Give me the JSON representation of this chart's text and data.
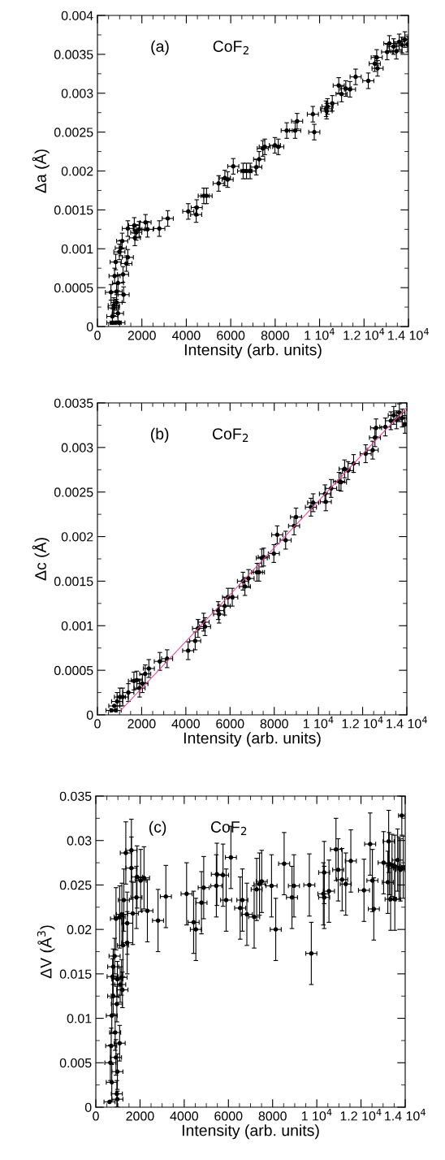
{
  "chart_data": [
    {
      "type": "scatter",
      "xlabel": "Intensity (arb. units)",
      "ylabel": "Δa (Å)",
      "annotations": [
        "(a)",
        "CoF$_{2}$"
      ],
      "marker": "circle",
      "grid": false,
      "xlim": [
        0,
        14000
      ],
      "xticks": [
        0,
        2000,
        4000,
        6000,
        8000,
        {
          "value": 10000,
          "label": "1 10$^{4}$"
        },
        {
          "value": 12000,
          "label": "1.2 10$^{4}$"
        },
        {
          "value": 14000,
          "label": "1.4 10$^{4}$"
        }
      ],
      "ylim": [
        0,
        0.004
      ],
      "yticks": [
        0,
        0.0005,
        0.001,
        0.0015,
        0.002,
        0.0025,
        0.003,
        0.0035,
        0.004
      ],
      "series": [
        {
          "color": "#000000",
          "x": [
            671,
            734,
            608,
            772,
            861,
            924,
            823,
            987,
            1051,
            1114,
            1177,
            1152,
            1367,
            1304,
            1367,
            1658,
            1747,
            1684,
            1874,
            2165,
            2253,
            2785,
            3165,
            4089,
            4469,
            4444,
            4786,
            4912,
            5456,
            5735,
            5861,
            6114,
            6558,
            6709,
            6874,
            7152,
            7279,
            7443,
            7532,
            7988,
            8140,
            8520,
            8900,
            8988,
            9697,
            9761,
            10292,
            10318,
            10356,
            10571,
            10862,
            10989,
            11179,
            11368,
            11622,
            12192,
            12483,
            12571,
            12609,
            13040,
            13141,
            13331,
            13457,
            13584,
            13711,
            13837,
            13964,
            671,
            823,
            924,
            734,
            987,
            861
          ],
          "values": [
            0.00013,
            0.00027,
            0.00044,
            0.00065,
            0.00045,
            0.00056,
            0.00083,
            0.00096,
            0.00101,
            0.0011,
            0.00041,
            0.00067,
            0.00089,
            0.00081,
            0.00126,
            0.0013,
            0.00121,
            0.00114,
            0.00125,
            0.00134,
            0.00125,
            0.00126,
            0.00139,
            0.00148,
            0.00153,
            0.00144,
            0.00168,
            0.00168,
            0.00184,
            0.00191,
            0.00189,
            0.00206,
            0.002,
            0.002,
            0.002,
            0.00205,
            0.00215,
            0.00229,
            0.00231,
            0.00233,
            0.00231,
            0.00252,
            0.00252,
            0.00264,
            0.00273,
            0.0025,
            0.0028,
            0.00277,
            0.00283,
            0.00287,
            0.0031,
            0.00299,
            0.00306,
            0.00305,
            0.00321,
            0.00316,
            0.00338,
            0.00346,
            0.00332,
            0.00353,
            0.00364,
            0.0036,
            0.00354,
            0.00366,
            0.00362,
            0.00369,
            0.00363,
            5e-05,
            5e-05,
            0.00017,
            0.00024,
            5e-05,
            0.00031
          ],
          "errors": [
            0.0001,
            0.0001,
            0.0001,
            0.0001,
            0.0001,
            0.0001,
            0.0001,
            0.0001,
            0.0001,
            0.0001,
            0.0001,
            0.0001,
            0.0001,
            0.0001,
            0.0001,
            0.0001,
            0.0001,
            0.0001,
            0.0001,
            0.0001,
            0.0001,
            0.0001,
            0.0001,
            0.0001,
            0.0001,
            0.0001,
            0.0001,
            0.0001,
            0.0001,
            0.0001,
            0.0001,
            0.0001,
            0.0001,
            0.0001,
            0.0001,
            0.0001,
            0.0001,
            0.0001,
            0.0001,
            0.0001,
            0.0001,
            0.0001,
            0.0001,
            0.0001,
            0.0001,
            0.0001,
            0.0001,
            0.0001,
            0.0001,
            0.0001,
            0.0001,
            0.0001,
            0.0001,
            0.0001,
            0.0001,
            0.0001,
            0.0001,
            0.0001,
            0.0001,
            0.0001,
            0.0001,
            0.0001,
            0.0001,
            0.0001,
            0.0001,
            0.0001,
            0.0001,
            null,
            null,
            0.0001,
            0.0001,
            null,
            0.0001
          ],
          "xerrors": [
            250,
            250,
            250,
            250,
            250,
            250,
            250,
            250,
            250,
            250,
            250,
            250,
            250,
            250,
            250,
            250,
            250,
            250,
            250,
            250,
            250,
            250,
            250,
            250,
            250,
            250,
            250,
            250,
            250,
            250,
            250,
            250,
            250,
            250,
            250,
            250,
            250,
            250,
            250,
            250,
            250,
            250,
            250,
            250,
            250,
            250,
            250,
            250,
            250,
            250,
            250,
            250,
            250,
            250,
            250,
            250,
            250,
            250,
            250,
            250,
            250,
            250,
            250,
            250,
            250,
            150,
            30,
            250,
            250,
            250,
            250,
            250,
            250
          ]
        }
      ]
    },
    {
      "type": "scatter",
      "xlabel": "Intensity (arb. units)",
      "ylabel": "Δc (Å)",
      "annotations": [
        "(b)",
        "CoF$_{2}$"
      ],
      "marker": "circle",
      "grid": false,
      "xlim": [
        0,
        14000
      ],
      "xticks": [
        0,
        2000,
        4000,
        6000,
        8000,
        {
          "value": 10000,
          "label": "1 10$^{4}$"
        },
        {
          "value": 12000,
          "label": "1.2 10$^{4}$"
        },
        {
          "value": 14000,
          "label": "1.4 10$^{4}$"
        }
      ],
      "ylim": [
        0,
        0.0035
      ],
      "yticks": [
        0,
        0.0005,
        0.001,
        0.0015,
        0.002,
        0.0025,
        0.003,
        0.0035
      ],
      "series": [
        {
          "color": "#000000",
          "x": [
            636,
            763,
            890,
            1017,
            1144,
            826,
            1398,
            1652,
            1779,
            1907,
            2034,
            2161,
            2326,
            2822,
            3152,
            4105,
            4423,
            4550,
            4804,
            4868,
            5465,
            5503,
            5758,
            5910,
            6101,
            6584,
            6673,
            6838,
            7219,
            7308,
            7435,
            7524,
            7982,
            8135,
            8516,
            8897,
            8986,
            9660,
            9762,
            10295,
            10333,
            10575,
            10931,
            11020,
            11185,
            11337,
            11591,
            12137,
            12455,
            12557,
            12608,
            13027,
            13281,
            13408,
            13535,
            13662,
            13789,
            13916
          ],
          "values": [
            5e-05,
            0.0001,
            0.00015,
            0.0002,
            0.0002,
            5e-05,
            0.00025,
            0.00038,
            0.00039,
            0.0003,
            0.00035,
            0.00046,
            0.00052,
            0.0006,
            0.00063,
            0.00072,
            0.00083,
            0.00097,
            0.00104,
            0.00099,
            0.00117,
            0.00113,
            0.00122,
            0.00132,
            0.00132,
            0.0015,
            0.00144,
            0.00153,
            0.0016,
            0.0016,
            0.00176,
            0.00177,
            0.00181,
            0.00202,
            0.00196,
            0.00212,
            0.00222,
            0.00233,
            0.00238,
            0.00248,
            0.00239,
            0.00254,
            0.00262,
            0.00261,
            0.00276,
            0.00274,
            0.00282,
            0.00293,
            0.00297,
            0.00311,
            0.00322,
            0.00323,
            0.0033,
            0.00336,
            0.00331,
            0.00339,
            0.00333,
            0.00326
          ],
          "errors": [
            null,
            null,
            0.0001,
            0.0001,
            0.0001,
            null,
            0.0001,
            0.0001,
            0.0001,
            0.0001,
            0.0001,
            0.0001,
            0.0001,
            0.0001,
            0.0001,
            0.0001,
            0.0001,
            0.0001,
            0.0001,
            0.0001,
            0.0001,
            0.0001,
            0.0001,
            0.0001,
            0.0001,
            0.0001,
            0.0001,
            0.0001,
            0.0001,
            0.0001,
            0.0001,
            0.0001,
            0.0001,
            0.0001,
            0.0001,
            0.0001,
            0.0001,
            0.0001,
            0.0001,
            0.0001,
            0.0001,
            0.0001,
            0.0001,
            0.0001,
            0.0001,
            0.0001,
            0.0001,
            0.0001,
            0.0001,
            0.0001,
            0.0001,
            0.0001,
            0.0001,
            0.0001,
            0.0001,
            0.0001,
            0.0001,
            0.0001
          ],
          "xerrors": [
            250,
            250,
            250,
            250,
            250,
            250,
            250,
            250,
            250,
            250,
            250,
            250,
            250,
            250,
            250,
            250,
            250,
            250,
            250,
            250,
            250,
            250,
            250,
            250,
            250,
            250,
            250,
            250,
            250,
            250,
            250,
            250,
            250,
            250,
            250,
            250,
            250,
            250,
            250,
            250,
            250,
            250,
            250,
            250,
            250,
            250,
            250,
            250,
            250,
            250,
            250,
            250,
            250,
            250,
            250,
            250,
            200,
            80
          ]
        },
        {
          "type": "line",
          "marker": "none",
          "color": "#e8479a",
          "x": [
            1055,
            14000
          ],
          "values": [
            5e-05,
            0.00345
          ]
        }
      ]
    },
    {
      "type": "scatter",
      "xlabel": "Intensity (arb. units)",
      "ylabel": "ΔV (Å$^{3}$)",
      "annotations": [
        "(c)",
        "CoF$_{2}$"
      ],
      "marker": "circle",
      "grid": false,
      "xlim": [
        0,
        14000
      ],
      "xticks": [
        0,
        2000,
        4000,
        6000,
        8000,
        {
          "value": 10000,
          "label": "1 10$^{4}$"
        },
        {
          "value": 12000,
          "label": "1.2 10$^{4}$"
        },
        {
          "value": 14000,
          "label": "1.4 10$^{4}$"
        }
      ],
      "ylim": [
        0,
        0.035
      ],
      "yticks": [
        0,
        0.005,
        0.01,
        0.015,
        0.02,
        0.025,
        0.03,
        0.035
      ],
      "series": [
        {
          "color": "#000000",
          "x": [
            621,
            723,
            659,
            697,
            723,
            786,
            761,
            786,
            850,
            875,
            913,
            951,
            976,
            976,
            951,
            976,
            1078,
            1103,
            1165,
            1205,
            913,
            1078,
            1180,
            1230,
            1268,
            1357,
            1420,
            1420,
            1610,
            1610,
            1674,
            1839,
            1864,
            2029,
            2181,
            2333,
            2815,
            3170,
            4108,
            4425,
            4527,
            4781,
            4882,
            5453,
            5478,
            5757,
            5897,
            6112,
            6531,
            6632,
            6835,
            7165,
            7279,
            7406,
            7507,
            7951,
            8141,
            8521,
            8876,
            8965,
            9662,
            9751,
            10296,
            10334,
            10334,
            10550,
            10867,
            10968,
            11146,
            11310,
            11539,
            12135,
            12414,
            12516,
            12579,
            13023,
            13213,
            13251,
            13276,
            13340,
            13403,
            13530,
            13530,
            13657,
            13720,
            13784,
            13847,
            13910
          ],
          "values": [
            0.0006,
            0.0028,
            0.005,
            0.0069,
            0.0103,
            0.0125,
            0.0147,
            0.0158,
            0.017,
            0.0084,
            0.0056,
            0.0015,
            0.0009,
            0.004,
            0.0116,
            0.0144,
            0.0072,
            0.0138,
            0.0146,
            0.0132,
            0.0212,
            0.0214,
            0.0217,
            0.0182,
            0.0233,
            0.0286,
            0.0207,
            0.0185,
            0.0289,
            0.0269,
            0.0218,
            0.0236,
            0.0259,
            0.0255,
            0.0258,
            0.0221,
            0.021,
            0.0237,
            0.024,
            0.0208,
            0.02,
            0.023,
            0.0247,
            0.0249,
            0.0262,
            0.0261,
            0.0233,
            0.0281,
            0.0224,
            0.0233,
            0.0217,
            0.0214,
            0.0245,
            0.0251,
            0.0254,
            0.0249,
            0.02,
            0.0274,
            0.0236,
            0.0249,
            0.025,
            0.0173,
            0.024,
            0.0264,
            0.0236,
            0.0243,
            0.029,
            0.0267,
            0.0256,
            0.0251,
            0.0277,
            0.0244,
            0.0296,
            0.0255,
            0.0223,
            0.0275,
            0.0253,
            0.0299,
            0.0274,
            0.0234,
            0.0272,
            0.0234,
            0.0271,
            0.0278,
            0.0269,
            0.0267,
            0.0328,
            0.027
          ],
          "errors": [
            null,
            0.002,
            0.002,
            0.002,
            0.002,
            0.002,
            0.002,
            0.002,
            0.002,
            0.002,
            0.002,
            0.0015,
            0.0009,
            0.002,
            0.002,
            0.002,
            0.002,
            0.002,
            0.002,
            0.002,
            0.0035,
            0.0035,
            0.0035,
            0.0035,
            0.0035,
            0.0035,
            0.0035,
            0.0035,
            0.0035,
            0.0035,
            0.0035,
            0.0035,
            0.0035,
            0.0035,
            0.0035,
            0.0035,
            0.0035,
            0.0035,
            0.0035,
            0.0035,
            0.0035,
            0.0035,
            0.0035,
            0.0035,
            0.0035,
            0.0035,
            0.0035,
            0.0035,
            0.0035,
            0.0035,
            0.0035,
            0.0035,
            0.0035,
            0.0035,
            0.0035,
            0.0035,
            0.0035,
            0.0035,
            0.0035,
            0.0035,
            0.0035,
            0.0035,
            0.0035,
            0.0035,
            0.0035,
            0.0035,
            0.0035,
            0.0035,
            0.0035,
            0.0035,
            0.0035,
            0.0035,
            0.0035,
            0.0035,
            0.0035,
            0.0035,
            0.0035,
            0.0035,
            0.0035,
            0.0035,
            0.0035,
            0.0035,
            0.0035,
            0.0035,
            0.0035,
            0.0035,
            0.0022,
            0.0035
          ],
          "xerrors": [
            250,
            250,
            250,
            250,
            250,
            250,
            250,
            250,
            250,
            250,
            250,
            250,
            250,
            250,
            250,
            250,
            250,
            250,
            250,
            250,
            250,
            250,
            250,
            250,
            250,
            250,
            250,
            250,
            250,
            250,
            250,
            250,
            250,
            250,
            250,
            250,
            250,
            250,
            250,
            250,
            250,
            250,
            250,
            250,
            250,
            250,
            250,
            250,
            250,
            250,
            250,
            250,
            250,
            250,
            250,
            250,
            250,
            250,
            250,
            250,
            250,
            250,
            250,
            250,
            250,
            250,
            250,
            250,
            250,
            250,
            250,
            250,
            250,
            250,
            250,
            250,
            250,
            250,
            250,
            250,
            250,
            250,
            250,
            250,
            250,
            200,
            150,
            80
          ]
        }
      ]
    }
  ]
}
